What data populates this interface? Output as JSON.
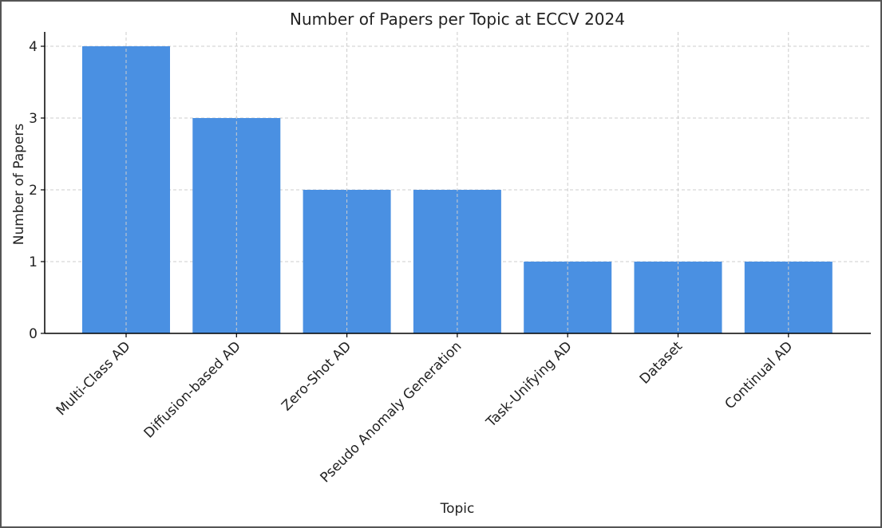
{
  "chart_data": {
    "type": "bar",
    "title": "Number of Papers per Topic at ECCV 2024",
    "xlabel": "Topic",
    "ylabel": "Number of Papers",
    "categories": [
      "Multi-Class AD",
      "Diffusion-based AD",
      "Zero-Shot AD",
      "Pseudo Anomaly Generation",
      "Task-Unifying AD",
      "Dataset",
      "Continual AD"
    ],
    "values": [
      4,
      3,
      2,
      2,
      1,
      1,
      1
    ],
    "ylim": [
      0,
      4.2
    ],
    "yticks": [
      0,
      1,
      2,
      3,
      4
    ],
    "grid": true,
    "legend": "none",
    "colors": {
      "bar": "#4a90e2",
      "grid": "#cccccc",
      "axis": "#000000",
      "text": "#222222"
    }
  }
}
